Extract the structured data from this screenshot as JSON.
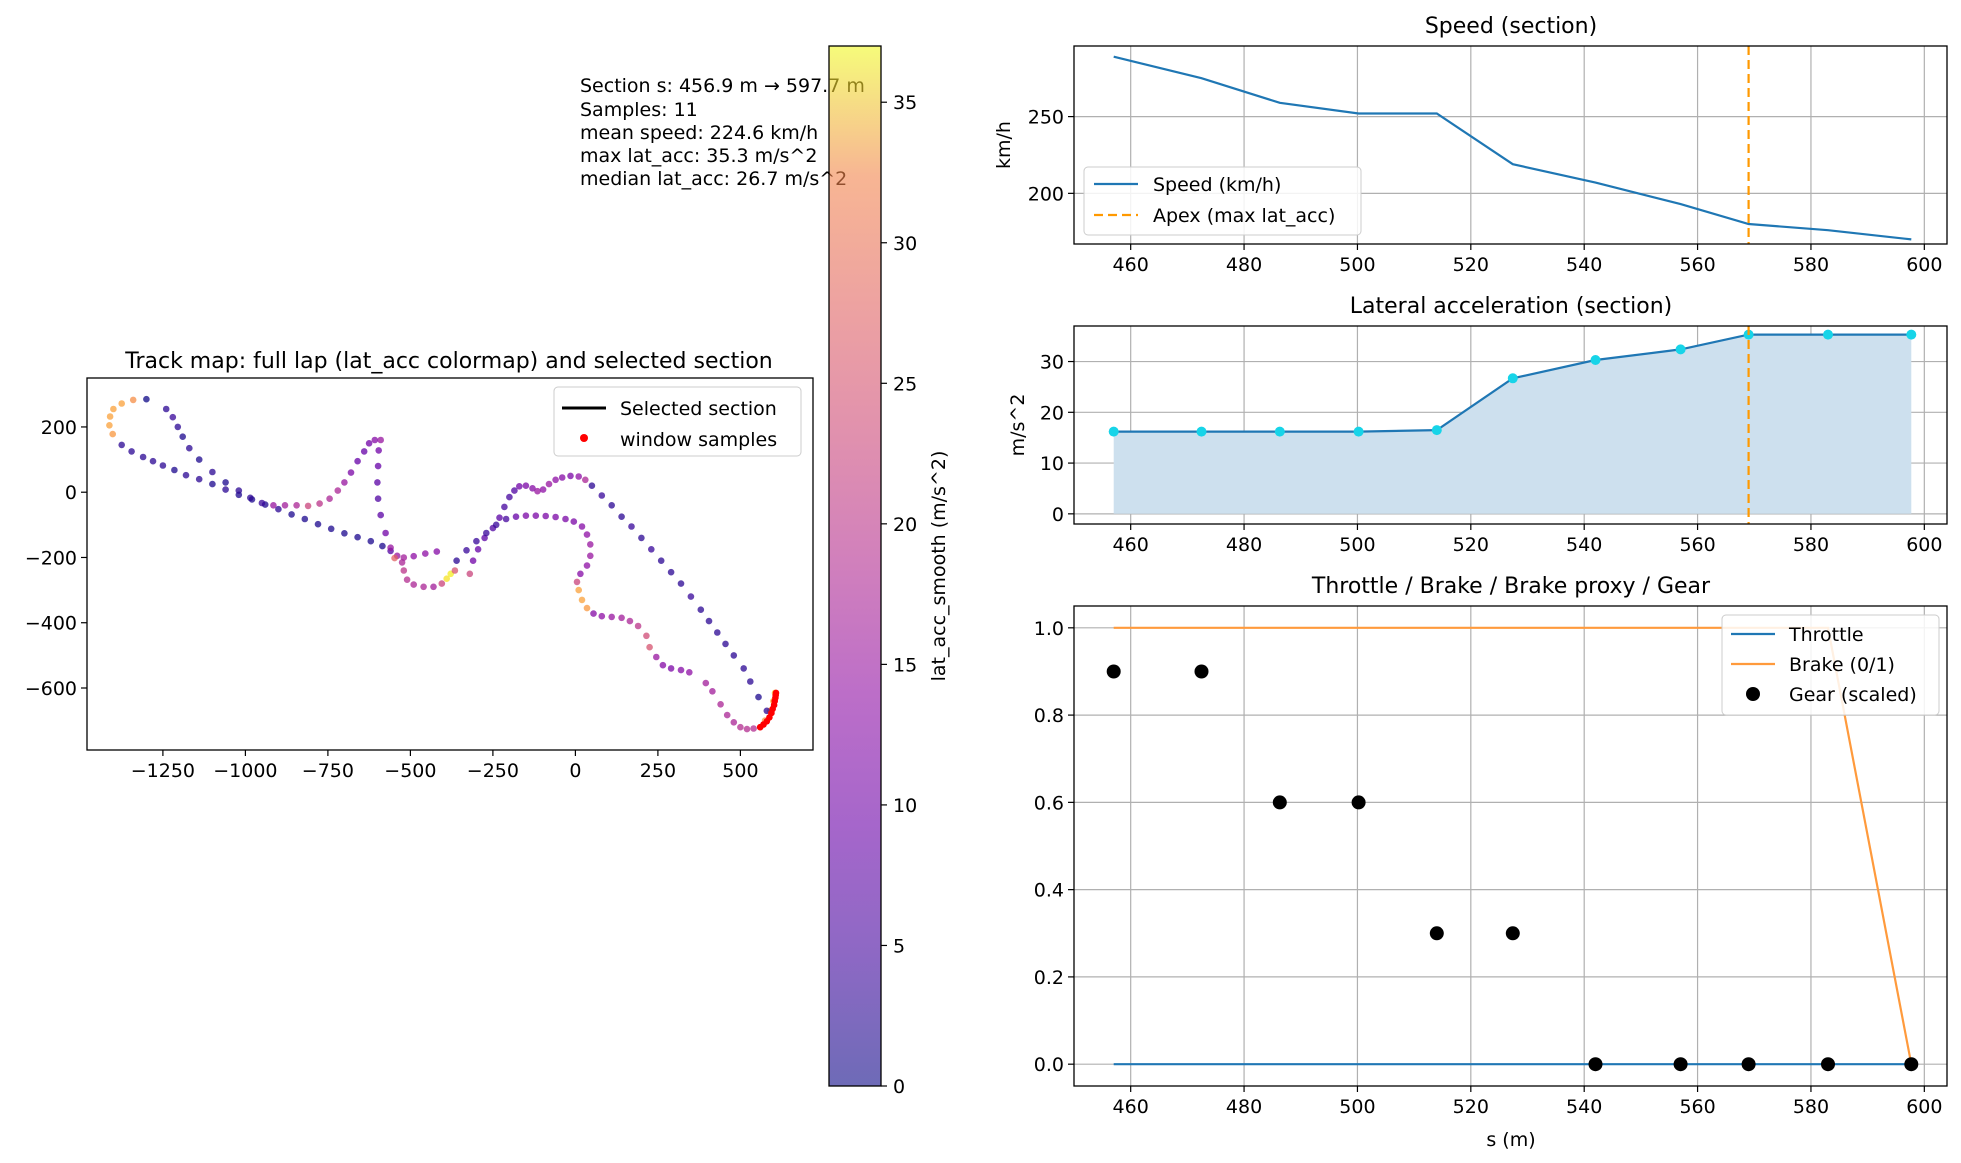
{
  "colors": {
    "speed_line": "#1f77b4",
    "apex_line": "#ff9900",
    "latacc_fill": "#cde0ee",
    "latacc_points": "#17d4e8",
    "throttle_line": "#1f77b4",
    "brake_line": "#ff9a3c",
    "gear_points": "#000000",
    "window_samples": "#ff0000",
    "colormap": "plasma"
  },
  "info_box": {
    "line1": "Section s: 456.9 m → 597.7 m",
    "line2": "Samples: 11",
    "line3": "mean speed: 224.6 km/h",
    "line4": "max lat_acc: 35.3 m/s^2",
    "line5": "median lat_acc: 26.7 m/s^2"
  },
  "chart_data": [
    {
      "id": "track_map",
      "type": "scatter",
      "title": "Track map: full lap (lat_acc colormap) and selected section",
      "xlabel": "",
      "ylabel": "",
      "xlim": [
        -1480,
        720
      ],
      "ylim": [
        -790,
        350
      ],
      "xticks": [
        -1250,
        -1000,
        -750,
        -500,
        -250,
        0,
        250,
        500
      ],
      "xtick_labels": [
        "−1250",
        "−1000",
        "−750",
        "−500",
        "−250",
        "0",
        "250",
        "500"
      ],
      "yticks": [
        200,
        0,
        -200,
        -400,
        -600
      ],
      "ytick_labels": [
        "200",
        "0",
        "−200",
        "−400",
        "−600"
      ],
      "grid": false,
      "legend": {
        "placement": "upper right",
        "entries": [
          "Selected section",
          "window samples"
        ]
      },
      "track_points": [
        [
          -1300,
          285,
          0
        ],
        [
          -1340,
          283,
          27
        ],
        [
          -1375,
          272,
          29
        ],
        [
          -1400,
          255,
          29
        ],
        [
          -1410,
          232,
          29
        ],
        [
          -1412,
          205,
          29
        ],
        [
          -1402,
          178,
          28
        ],
        [
          -1375,
          145,
          2
        ],
        [
          -1345,
          125,
          2
        ],
        [
          -1310,
          108,
          2
        ],
        [
          -1280,
          95,
          2
        ],
        [
          -1250,
          82,
          2
        ],
        [
          -1215,
          68,
          1
        ],
        [
          -1180,
          52,
          2
        ],
        [
          -1140,
          40,
          2
        ],
        [
          -1100,
          25,
          1
        ],
        [
          -1060,
          8,
          2
        ],
        [
          -1020,
          -8,
          1
        ],
        [
          -980,
          -22,
          1
        ],
        [
          -940,
          -38,
          1
        ],
        [
          -900,
          -52,
          2
        ],
        [
          -860,
          -68,
          1
        ],
        [
          -820,
          -82,
          1
        ],
        [
          -780,
          -98,
          1
        ],
        [
          -740,
          -112,
          1
        ],
        [
          -700,
          -126,
          1
        ],
        [
          -660,
          -138,
          1
        ],
        [
          -620,
          -150,
          1
        ],
        [
          -585,
          -165,
          1
        ],
        [
          -560,
          -180,
          5
        ],
        [
          -540,
          -195,
          12
        ],
        [
          -525,
          -215,
          14
        ],
        [
          -520,
          -240,
          16
        ],
        [
          -510,
          -268,
          15
        ],
        [
          -490,
          -283,
          14
        ],
        [
          -460,
          -290,
          14
        ],
        [
          -430,
          -290,
          13
        ],
        [
          -405,
          -280,
          18
        ],
        [
          -390,
          -265,
          35
        ],
        [
          -378,
          -250,
          36
        ],
        [
          -365,
          -240,
          20
        ],
        [
          -420,
          -182,
          10
        ],
        [
          -455,
          -188,
          11
        ],
        [
          -490,
          -196,
          11
        ],
        [
          -520,
          -200,
          13
        ],
        [
          -548,
          -202,
          22
        ],
        [
          -560,
          -170,
          12
        ],
        [
          -575,
          -125,
          8
        ],
        [
          -590,
          -70,
          6
        ],
        [
          -598,
          -20,
          5
        ],
        [
          -600,
          30,
          6
        ],
        [
          -598,
          80,
          7
        ],
        [
          -596,
          128,
          8
        ],
        [
          -590,
          160,
          12
        ],
        [
          -608,
          160,
          10
        ],
        [
          -625,
          150,
          8
        ],
        [
          -640,
          125,
          7
        ],
        [
          -660,
          95,
          7
        ],
        [
          -680,
          60,
          9
        ],
        [
          -700,
          30,
          12
        ],
        [
          -720,
          5,
          14
        ],
        [
          -745,
          -20,
          14
        ],
        [
          -775,
          -35,
          16
        ],
        [
          -810,
          -42,
          18
        ],
        [
          -845,
          -40,
          14
        ],
        [
          -880,
          -40,
          13
        ],
        [
          -915,
          -40,
          12
        ],
        [
          -950,
          -33,
          3
        ],
        [
          -985,
          -17,
          2
        ],
        [
          -1020,
          5,
          2
        ],
        [
          -1060,
          30,
          1
        ],
        [
          -1100,
          62,
          2
        ],
        [
          -1140,
          100,
          1
        ],
        [
          -1170,
          135,
          2
        ],
        [
          -1190,
          170,
          1
        ],
        [
          -1205,
          200,
          2
        ],
        [
          -1220,
          230,
          3
        ],
        [
          -1240,
          255,
          2
        ],
        [
          -320,
          -250,
          18
        ],
        [
          -310,
          -210,
          8
        ],
        [
          -295,
          -175,
          7
        ],
        [
          -275,
          -140,
          6
        ],
        [
          -250,
          -110,
          5
        ],
        [
          -230,
          -78,
          6
        ],
        [
          -215,
          -45,
          4
        ],
        [
          -200,
          -15,
          4
        ],
        [
          -185,
          5,
          5
        ],
        [
          -170,
          18,
          8
        ],
        [
          -150,
          20,
          9
        ],
        [
          -130,
          12,
          10
        ],
        [
          -115,
          3,
          12
        ],
        [
          -98,
          8,
          11
        ],
        [
          -80,
          25,
          12
        ],
        [
          -60,
          38,
          11
        ],
        [
          -40,
          45,
          10
        ],
        [
          -15,
          50,
          9
        ],
        [
          10,
          48,
          11
        ],
        [
          30,
          38,
          14
        ],
        [
          -360,
          -210,
          2
        ],
        [
          -330,
          -178,
          3
        ],
        [
          -300,
          -150,
          3
        ],
        [
          -270,
          -125,
          3
        ],
        [
          -240,
          -100,
          3
        ],
        [
          -210,
          -82,
          4
        ],
        [
          -180,
          -75,
          7
        ],
        [
          -150,
          -72,
          9
        ],
        [
          -120,
          -72,
          9
        ],
        [
          -90,
          -73,
          9
        ],
        [
          -60,
          -76,
          9
        ],
        [
          -30,
          -82,
          9
        ],
        [
          -5,
          -90,
          9
        ],
        [
          20,
          -105,
          10
        ],
        [
          35,
          -130,
          11
        ],
        [
          45,
          -160,
          12
        ],
        [
          45,
          -195,
          12
        ],
        [
          35,
          -225,
          11
        ],
        [
          15,
          -250,
          10
        ],
        [
          5,
          -275,
          18
        ],
        [
          10,
          -300,
          29
        ],
        [
          20,
          -330,
          29
        ],
        [
          35,
          -355,
          28
        ],
        [
          55,
          -372,
          10
        ],
        [
          80,
          -380,
          11
        ],
        [
          110,
          -382,
          12
        ],
        [
          140,
          -385,
          13
        ],
        [
          165,
          -395,
          14
        ],
        [
          190,
          -410,
          16
        ],
        [
          215,
          -440,
          19
        ],
        [
          225,
          -475,
          20
        ],
        [
          245,
          -505,
          12
        ],
        [
          265,
          -530,
          10
        ],
        [
          290,
          -540,
          9
        ],
        [
          320,
          -545,
          10
        ],
        [
          345,
          -552,
          11
        ],
        [
          395,
          -585,
          13
        ],
        [
          415,
          -610,
          13
        ],
        [
          440,
          -650,
          14
        ],
        [
          460,
          -683,
          14
        ],
        [
          480,
          -705,
          14
        ],
        [
          500,
          -720,
          15
        ],
        [
          520,
          -726,
          15
        ],
        [
          540,
          -724,
          15
        ],
        [
          560,
          -720,
          20
        ],
        [
          575,
          -700,
          28
        ],
        [
          590,
          -670,
          30
        ],
        [
          600,
          -640,
          31
        ],
        [
          605,
          -615,
          32
        ],
        [
          50,
          20,
          2
        ],
        [
          80,
          -10,
          3
        ],
        [
          110,
          -40,
          2
        ],
        [
          140,
          -75,
          2
        ],
        [
          170,
          -105,
          3
        ],
        [
          200,
          -140,
          2
        ],
        [
          230,
          -175,
          3
        ],
        [
          260,
          -210,
          2
        ],
        [
          290,
          -245,
          2
        ],
        [
          320,
          -280,
          2
        ],
        [
          350,
          -320,
          3
        ],
        [
          380,
          -360,
          2
        ],
        [
          405,
          -395,
          2
        ],
        [
          430,
          -430,
          2
        ],
        [
          455,
          -465,
          2
        ],
        [
          480,
          -500,
          2
        ],
        [
          510,
          -540,
          2
        ],
        [
          530,
          -580,
          2
        ],
        [
          555,
          -628,
          1
        ],
        [
          580,
          -670,
          2
        ]
      ],
      "window_samples": [
        [
          560,
          -720
        ],
        [
          570,
          -712
        ],
        [
          580,
          -702
        ],
        [
          588,
          -690
        ],
        [
          594,
          -677
        ],
        [
          598,
          -664
        ],
        [
          602,
          -652
        ],
        [
          604,
          -640
        ],
        [
          606,
          -630
        ],
        [
          607,
          -622
        ],
        [
          608,
          -615
        ]
      ],
      "colorbar": {
        "label": "lat_acc_smooth (m/s^2)",
        "range": [
          0,
          37
        ],
        "ticks": [
          0,
          5,
          10,
          15,
          20,
          25,
          30,
          35
        ]
      }
    },
    {
      "id": "speed",
      "type": "line",
      "title": "Speed (section)",
      "xlabel": "",
      "ylabel": "km/h",
      "xlim": [
        450,
        604
      ],
      "ylim": [
        167,
        296
      ],
      "xticks": [
        460,
        480,
        500,
        520,
        540,
        560,
        580,
        600
      ],
      "yticks": [
        200,
        250
      ],
      "grid": true,
      "legend": {
        "placement": "lower left",
        "entries": [
          "Speed (km/h)",
          "Apex (max lat_acc)"
        ]
      },
      "series": [
        {
          "name": "Speed (km/h)",
          "x": [
            457,
            472.5,
            486.3,
            500.2,
            514,
            527.4,
            542,
            557,
            569,
            583,
            597.7
          ],
          "values": [
            289,
            275,
            259,
            252,
            252,
            219,
            207,
            193,
            180,
            176,
            170
          ]
        }
      ],
      "apex_x": 569
    },
    {
      "id": "lat_acc",
      "type": "area",
      "title": "Lateral acceleration (section)",
      "xlabel": "",
      "ylabel": "m/s^2",
      "xlim": [
        450,
        604
      ],
      "ylim": [
        -2,
        37
      ],
      "xticks": [
        460,
        480,
        500,
        520,
        540,
        560,
        580,
        600
      ],
      "yticks": [
        0,
        10,
        20,
        30
      ],
      "grid": true,
      "series": [
        {
          "name": "lat_acc",
          "x": [
            457,
            472.5,
            486.3,
            500.2,
            514,
            527.4,
            542,
            557,
            569,
            583,
            597.7
          ],
          "values": [
            16.2,
            16.2,
            16.2,
            16.2,
            16.5,
            26.7,
            30.3,
            32.4,
            35.3,
            35.3,
            35.3
          ]
        }
      ],
      "apex_x": 569
    },
    {
      "id": "controls",
      "type": "line",
      "title": "Throttle / Brake / Brake proxy / Gear",
      "xlabel": "s (m)",
      "ylabel": "",
      "xlim": [
        450,
        604
      ],
      "ylim": [
        -0.05,
        1.05
      ],
      "xticks": [
        460,
        480,
        500,
        520,
        540,
        560,
        580,
        600
      ],
      "yticks": [
        0,
        0.2,
        0.4,
        0.6,
        0.8,
        1.0
      ],
      "ytick_labels": [
        "0.0",
        "0.2",
        "0.4",
        "0.6",
        "0.8",
        "1.0"
      ],
      "grid": true,
      "legend": {
        "placement": "upper right",
        "entries": [
          "Throttle",
          "Brake (0/1)",
          "Gear (scaled)"
        ]
      },
      "series": [
        {
          "name": "Throttle",
          "x": [
            457,
            597.7
          ],
          "values": [
            0,
            0
          ]
        },
        {
          "name": "Brake (0/1)",
          "x": [
            457,
            583,
            597.7
          ],
          "values": [
            1,
            1,
            0
          ]
        },
        {
          "name": "Gear (scaled)",
          "x": [
            457,
            472.5,
            486.3,
            500.2,
            514,
            527.4,
            542,
            557,
            569,
            583,
            597.7
          ],
          "values": [
            0.9,
            0.9,
            0.6,
            0.6,
            0.3,
            0.3,
            0,
            0,
            0,
            0,
            0
          ]
        }
      ]
    }
  ]
}
